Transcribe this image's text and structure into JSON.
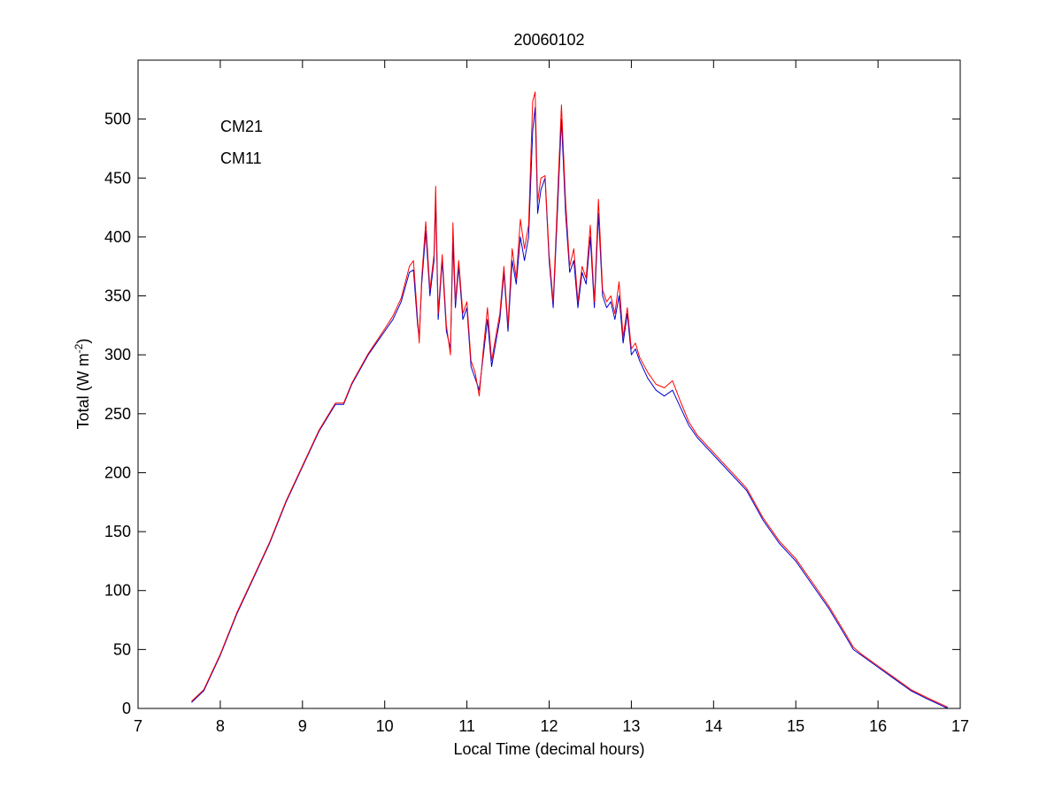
{
  "chart_data": {
    "type": "line",
    "title": "20060102",
    "xlabel": "Local Time (decimal hours)",
    "ylabel_main": "Total (W m",
    "ylabel_sup": "-2",
    "ylabel_close": ")",
    "xlim": [
      7,
      17
    ],
    "ylim": [
      0,
      550
    ],
    "xticks": [
      7,
      8,
      9,
      10,
      11,
      12,
      13,
      14,
      15,
      16,
      17
    ],
    "yticks": [
      0,
      50,
      100,
      150,
      200,
      250,
      300,
      350,
      400,
      450,
      500
    ],
    "xtick_labels": [
      "7",
      "8",
      "9",
      "10",
      "11",
      "12",
      "13",
      "14",
      "15",
      "16",
      "17"
    ],
    "ytick_labels": [
      "0",
      "50",
      "100",
      "150",
      "200",
      "250",
      "300",
      "350",
      "400",
      "450",
      "500"
    ],
    "grid": false,
    "legend_placement": "top-left",
    "series": [
      {
        "name": "CM21",
        "color": "#0000cc",
        "x": [
          7.65,
          7.8,
          8.0,
          8.2,
          8.4,
          8.6,
          8.8,
          9.0,
          9.2,
          9.4,
          9.5,
          9.6,
          9.8,
          10.0,
          10.1,
          10.2,
          10.3,
          10.35,
          10.4,
          10.42,
          10.45,
          10.5,
          10.55,
          10.6,
          10.62,
          10.65,
          10.7,
          10.75,
          10.8,
          10.83,
          10.86,
          10.9,
          10.95,
          11.0,
          11.05,
          11.1,
          11.15,
          11.2,
          11.25,
          11.3,
          11.35,
          11.4,
          11.45,
          11.5,
          11.55,
          11.6,
          11.65,
          11.7,
          11.75,
          11.8,
          11.83,
          11.86,
          11.9,
          11.95,
          12.0,
          12.05,
          12.1,
          12.15,
          12.2,
          12.25,
          12.3,
          12.35,
          12.4,
          12.45,
          12.5,
          12.55,
          12.6,
          12.65,
          12.7,
          12.75,
          12.8,
          12.85,
          12.9,
          12.95,
          13.0,
          13.05,
          13.1,
          13.2,
          13.3,
          13.4,
          13.5,
          13.6,
          13.7,
          13.8,
          14.0,
          14.2,
          14.4,
          14.6,
          14.8,
          15.0,
          15.2,
          15.4,
          15.6,
          15.7,
          15.8,
          16.0,
          16.2,
          16.4,
          16.6,
          16.85
        ],
        "y": [
          5,
          15,
          45,
          80,
          110,
          140,
          175,
          205,
          235,
          258,
          258,
          275,
          300,
          320,
          330,
          345,
          370,
          372,
          325,
          315,
          360,
          405,
          350,
          380,
          430,
          330,
          380,
          320,
          305,
          395,
          340,
          375,
          330,
          340,
          290,
          280,
          270,
          300,
          330,
          290,
          310,
          330,
          370,
          320,
          380,
          360,
          400,
          380,
          400,
          490,
          510,
          420,
          440,
          450,
          380,
          340,
          420,
          500,
          420,
          370,
          380,
          340,
          370,
          360,
          400,
          340,
          420,
          350,
          340,
          345,
          330,
          350,
          310,
          335,
          300,
          305,
          295,
          280,
          270,
          265,
          270,
          255,
          240,
          230,
          215,
          200,
          185,
          160,
          140,
          125,
          105,
          85,
          62,
          50,
          45,
          35,
          25,
          15,
          8,
          0
        ]
      },
      {
        "name": "CM11",
        "color": "#ff0000",
        "x": [
          7.65,
          7.8,
          8.0,
          8.2,
          8.4,
          8.6,
          8.8,
          9.0,
          9.2,
          9.4,
          9.5,
          9.6,
          9.8,
          10.0,
          10.1,
          10.2,
          10.3,
          10.35,
          10.4,
          10.42,
          10.45,
          10.5,
          10.55,
          10.6,
          10.62,
          10.65,
          10.7,
          10.75,
          10.8,
          10.83,
          10.86,
          10.9,
          10.95,
          11.0,
          11.05,
          11.1,
          11.15,
          11.2,
          11.25,
          11.3,
          11.35,
          11.4,
          11.45,
          11.5,
          11.55,
          11.6,
          11.65,
          11.7,
          11.75,
          11.8,
          11.83,
          11.86,
          11.9,
          11.95,
          12.0,
          12.05,
          12.1,
          12.15,
          12.2,
          12.25,
          12.3,
          12.35,
          12.4,
          12.45,
          12.5,
          12.55,
          12.6,
          12.65,
          12.7,
          12.75,
          12.8,
          12.85,
          12.9,
          12.95,
          13.0,
          13.05,
          13.1,
          13.2,
          13.3,
          13.4,
          13.5,
          13.6,
          13.7,
          13.8,
          14.0,
          14.2,
          14.4,
          14.6,
          14.8,
          15.0,
          15.2,
          15.4,
          15.6,
          15.7,
          15.8,
          16.0,
          16.2,
          16.4,
          16.6,
          16.85
        ],
        "y": [
          6,
          16,
          46,
          81,
          111,
          141,
          176,
          206,
          236,
          259,
          259,
          276,
          301,
          322,
          333,
          348,
          375,
          380,
          330,
          310,
          365,
          413,
          355,
          385,
          443,
          335,
          385,
          325,
          300,
          412,
          345,
          380,
          335,
          345,
          295,
          285,
          265,
          305,
          340,
          295,
          315,
          335,
          375,
          325,
          390,
          365,
          415,
          390,
          410,
          515,
          523,
          430,
          450,
          452,
          385,
          345,
          430,
          512,
          430,
          375,
          390,
          345,
          375,
          365,
          410,
          345,
          432,
          355,
          345,
          350,
          335,
          362,
          315,
          340,
          305,
          310,
          298,
          285,
          275,
          272,
          278,
          260,
          243,
          232,
          217,
          202,
          187,
          162,
          142,
          127,
          107,
          87,
          64,
          52,
          46,
          36,
          26,
          16,
          9,
          1
        ]
      }
    ]
  }
}
